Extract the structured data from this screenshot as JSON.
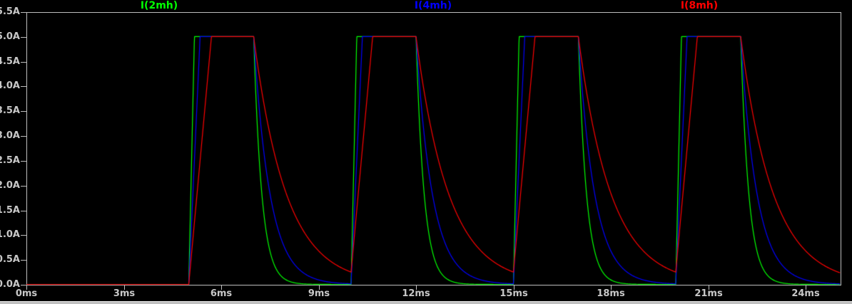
{
  "colors": {
    "background": "#000000",
    "axis": "#bebebe",
    "tick_label": "#c8c8c8",
    "window_edge": "#bfbfbf"
  },
  "chart_data": {
    "type": "line",
    "title": "",
    "xlabel": "",
    "ylabel": "",
    "x_unit": "ms",
    "y_unit": "A",
    "xlim": [
      0,
      25.07
    ],
    "ylim": [
      0,
      5.5
    ],
    "grid": false,
    "legend_position": "top",
    "x_tick_values": [
      0,
      3,
      6,
      9,
      12,
      15,
      18,
      21,
      24
    ],
    "x_tick_labels": [
      "0ms",
      "3ms",
      "6ms",
      "9ms",
      "12ms",
      "15ms",
      "18ms",
      "21ms",
      "24ms"
    ],
    "y_tick_values": [
      0,
      0.5,
      1.0,
      1.5,
      2.0,
      2.5,
      3.0,
      3.5,
      4.0,
      4.5,
      5.0,
      5.5
    ],
    "y_tick_labels": [
      "0.0A",
      "0.5A",
      "1.0A",
      "1.5A",
      "2.0A",
      "2.5A",
      "3.0A",
      "3.5A",
      "4.0A",
      "4.5A",
      "5.0A",
      "5.5A"
    ],
    "pulse_train": {
      "amplitude_A": 5.0,
      "first_rise_ms": 5.0,
      "on_time_ms": 2.0,
      "period_ms": 5.0,
      "num_pulses": 4,
      "rise_times_ms": [
        5,
        10,
        15,
        20
      ],
      "fall_times_ms": [
        7,
        12,
        17,
        22
      ],
      "sim_end_ms": 25.07
    },
    "waveform_model": "Each trace is 0A until 5ms. On each pulse it ramps linearly to 5.0A (slope = 5A / rise_time_ms), holds at 5.0A until the fall time, then decays exponentially with time constant decay_tau_ms. Pattern repeats every 5ms.",
    "series": [
      {
        "name": "I(2mh)",
        "color": "#00ff00",
        "rise_time_ms": 0.175,
        "decay_tau_ms": 0.25,
        "residual_before_next_pulse_A": 0.0,
        "keypoints_t_i": [
          [
            0,
            0
          ],
          [
            5,
            0
          ],
          [
            5.18,
            5.0
          ],
          [
            7,
            5.0
          ],
          [
            7.5,
            0.68
          ],
          [
            8,
            0.09
          ],
          [
            8.5,
            0.01
          ],
          [
            10,
            0.0
          ]
        ]
      },
      {
        "name": "I(4mh)",
        "color": "#0000ff",
        "rise_time_ms": 0.35,
        "decay_tau_ms": 0.5,
        "residual_before_next_pulse_A": 0.01,
        "keypoints_t_i": [
          [
            0,
            0
          ],
          [
            5,
            0
          ],
          [
            5.35,
            5.0
          ],
          [
            7,
            5.0
          ],
          [
            7.5,
            1.84
          ],
          [
            8,
            0.68
          ],
          [
            9,
            0.09
          ],
          [
            10,
            0.01
          ]
        ]
      },
      {
        "name": "I(8mh)",
        "color": "#ff0000",
        "rise_time_ms": 0.7,
        "decay_tau_ms": 1.0,
        "residual_before_next_pulse_A": 0.25,
        "keypoints_t_i": [
          [
            0,
            0
          ],
          [
            5,
            0
          ],
          [
            5.7,
            5.0
          ],
          [
            7,
            5.0
          ],
          [
            8,
            1.84
          ],
          [
            9,
            0.68
          ],
          [
            10,
            0.25
          ]
        ]
      }
    ]
  }
}
